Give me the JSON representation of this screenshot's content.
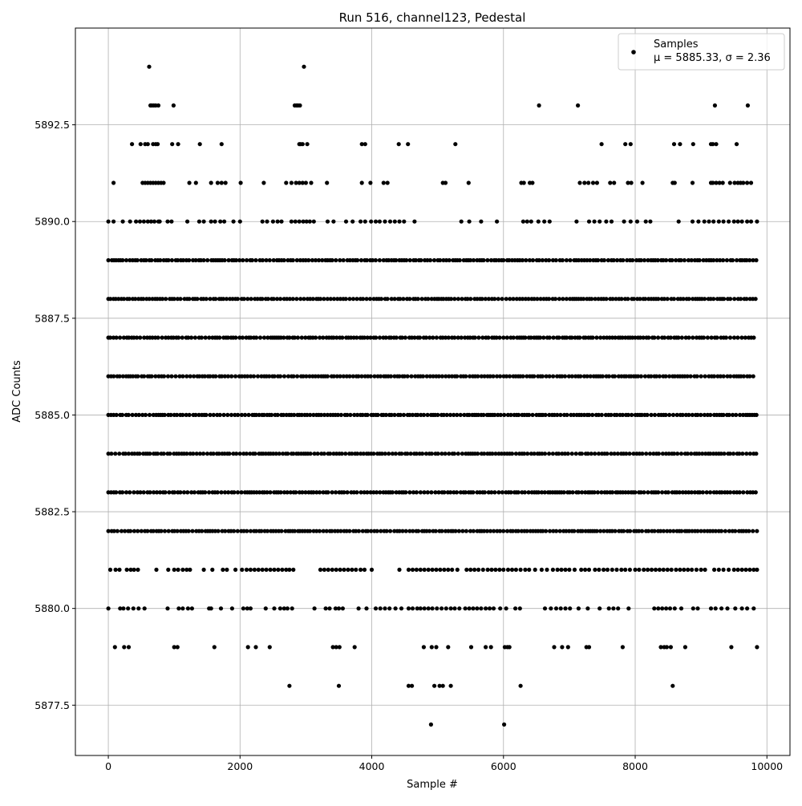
{
  "chart_data": {
    "type": "scatter",
    "title": "Run 516, channel123, Pedestal",
    "xlabel": "Sample #",
    "ylabel": "ADC Counts",
    "xlim": [
      -500,
      10350
    ],
    "ylim": [
      5876.2,
      5895.0
    ],
    "x_ticks": [
      0,
      2000,
      4000,
      6000,
      8000,
      10000
    ],
    "x_tick_labels": [
      "0",
      "2000",
      "4000",
      "6000",
      "8000",
      "10000"
    ],
    "y_ticks": [
      5877.5,
      5880.0,
      5882.5,
      5885.0,
      5887.5,
      5890.0,
      5892.5
    ],
    "y_tick_labels": [
      "5877.5",
      "5880.0",
      "5882.5",
      "5885.0",
      "5887.5",
      "5890.0",
      "5892.5"
    ],
    "grid": true,
    "legend": {
      "placement": "top-right",
      "entries": [
        {
          "label": "Samples",
          "stats": "μ = 5885.33, σ = 2.36"
        }
      ]
    },
    "marker_color": "#000000",
    "series": [
      {
        "name": "Samples",
        "n_samples": 9850,
        "x_range": [
          0,
          9850
        ],
        "mean": 5885.33,
        "std": 2.36,
        "levels": [
          {
            "y": 5894,
            "x": [
              620,
              2970
            ]
          },
          {
            "y": 5893,
            "x": [
              640,
              660,
              690,
              720,
              760,
              990,
              2830,
              2860,
              2880,
              2910,
              6540,
              7130,
              9210,
              9710
            ]
          },
          {
            "y": 5892,
            "x": [
              360,
              490,
              560,
              600,
              680,
              720,
              750,
              970,
              1060,
              1390,
              1720,
              2900,
              2920,
              2950,
              3020,
              3850,
              3900,
              4410,
              4550,
              5270,
              7490,
              7850,
              7930,
              8590,
              8680,
              8880,
              9150,
              9180,
              9230,
              9540
            ]
          },
          {
            "y": 5891,
            "x": [
              80,
              520,
              560,
              600,
              640,
              680,
              720,
              760,
              800,
              840,
              1230,
              1330,
              1560,
              1660,
              1720,
              1780,
              2010,
              2360,
              2700,
              2780,
              2850,
              2900,
              2950,
              3000,
              3080,
              3320,
              3850,
              3980,
              4180,
              4240,
              5080,
              5120,
              5470,
              6270,
              6310,
              6400,
              6440,
              7160,
              7230,
              7290,
              7360,
              7420,
              7620,
              7680,
              7890,
              7940,
              8110,
              8570,
              8600,
              8870,
              9150,
              9180,
              9230,
              9280,
              9330,
              9440,
              9510,
              9560,
              9600,
              9640,
              9700,
              9760
            ]
          },
          {
            "y": 5890,
            "x": [
              0,
              80,
              220,
              330,
              420,
              480,
              540,
              600,
              650,
              700,
              760,
              780,
              900,
              960,
              1200,
              1380,
              1450,
              1560,
              1620,
              1700,
              1760,
              1900,
              2000,
              2340,
              2410,
              2500,
              2570,
              2630,
              2780,
              2840,
              2900,
              2960,
              3010,
              3060,
              3120,
              3330,
              3420,
              3610,
              3710,
              3830,
              3900,
              3990,
              4060,
              4120,
              4200,
              4280,
              4350,
              4420,
              4490,
              4650,
              5360,
              5480,
              5660,
              5900,
              6300,
              6360,
              6420,
              6530,
              6620,
              6700,
              7110,
              7300,
              7380,
              7460,
              7560,
              7640,
              7830,
              7930,
              8030,
              8160,
              8230,
              8660,
              8870,
              8960,
              9050,
              9120,
              9190,
              9270,
              9340,
              9420,
              9500,
              9560,
              9620,
              9700,
              9760,
              9850
            ]
          },
          {
            "y": 5878,
            "x": [
              2750,
              3500,
              4560,
              4610,
              4950,
              5030,
              5080,
              5200,
              6260,
              8570
            ]
          },
          {
            "y": 5877,
            "x": [
              4900,
              6010
            ]
          },
          {
            "y": 5879,
            "x": [
              100,
              240,
              310,
              1000,
              1050,
              1610,
              2120,
              2240,
              2450,
              3410,
              3460,
              3510,
              3740,
              4790,
              4910,
              4980,
              5160,
              5510,
              5730,
              5810,
              6020,
              6060,
              6090,
              6770,
              6890,
              6980,
              7260,
              7300,
              7810,
              8390,
              8440,
              8480,
              8540,
              8760,
              9460,
              9850
            ]
          },
          {
            "y": 5880,
            "x": [
              0,
              180,
              230,
              300,
              380,
              460,
              550,
              900,
              1070,
              1130,
              1210,
              1270,
              1530,
              1560,
              1710,
              1880,
              2050,
              2110,
              2160,
              2390,
              2520,
              2610,
              2670,
              2720,
              2790,
              3130,
              3300,
              3360,
              3450,
              3500,
              3560,
              3800,
              3920,
              4060,
              4130,
              4200,
              4270,
              4360,
              4450,
              4560,
              4620,
              4690,
              4740,
              4800,
              4860,
              4920,
              4990,
              5060,
              5130,
              5200,
              5260,
              5330,
              5420,
              5480,
              5540,
              5600,
              5660,
              5730,
              5790,
              5850,
              5950,
              6040,
              6180,
              6250,
              6630,
              6720,
              6800,
              6870,
              6940,
              7010,
              7140,
              7280,
              7460,
              7600,
              7670,
              7740,
              7900,
              8290,
              8350,
              8410,
              8470,
              8530,
              8600,
              8700,
              8880,
              8950,
              9150,
              9220,
              9310,
              9400,
              9520,
              9620,
              9700,
              9800
            ]
          },
          {
            "y": 5881,
            "x": [
              30,
              110,
              170,
              280,
              340,
              390,
              450,
              730,
              910,
              1000,
              1060,
              1130,
              1190,
              1240,
              1450,
              1580,
              1740,
              1800,
              1930,
              2030,
              2100,
              2160,
              2220,
              2280,
              2340,
              2400,
              2460,
              2520,
              2580,
              2640,
              2700,
              2750,
              2810,
              3220,
              3280,
              3340,
              3400,
              3460,
              3520,
              3580,
              3640,
              3700,
              3760,
              3830,
              3890,
              4000,
              4420,
              4560,
              4620,
              4680,
              4740,
              4800,
              4860,
              4920,
              4980,
              5040,
              5100,
              5160,
              5220,
              5300,
              5440,
              5500,
              5560,
              5620,
              5690,
              5760,
              5820,
              5880,
              5940,
              6000,
              6070,
              6130,
              6190,
              6260,
              6330,
              6390,
              6480,
              6580,
              6660,
              6750,
              6820,
              6880,
              6940,
              7000,
              7080,
              7180,
              7240,
              7300,
              7390,
              7450,
              7520,
              7580,
              7650,
              7720,
              7790,
              7850,
              7920,
              8000,
              8060,
              8130,
              8190,
              8250,
              8310,
              8370,
              8430,
              8490,
              8550,
              8620,
              8680,
              8740,
              8800,
              8860,
              8930,
              9000,
              9060,
              9200,
              9270,
              9340,
              9420,
              9500,
              9560,
              9620,
              9680,
              9740,
              9800,
              9850
            ]
          }
        ],
        "dense_levels": [
          5882,
          5883,
          5884,
          5885,
          5886,
          5887,
          5888,
          5889
        ]
      }
    ]
  }
}
